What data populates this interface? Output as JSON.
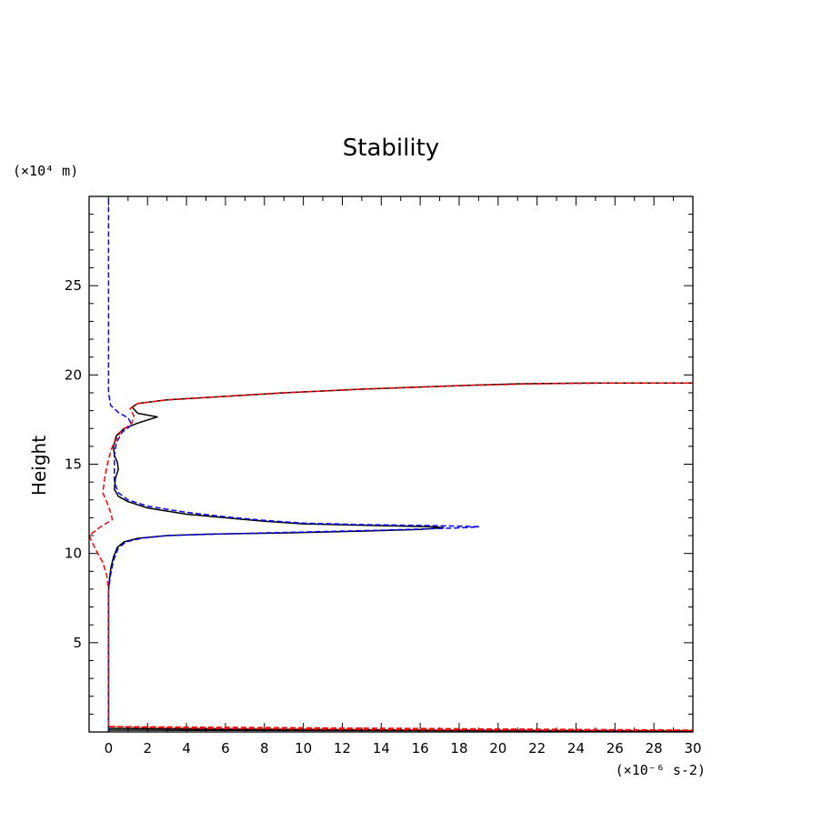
{
  "chart_data": {
    "type": "line",
    "title": "Stability",
    "xlabel": "",
    "ylabel": "Height",
    "x_unit": "(×10⁻⁶ s-2)",
    "y_unit": "(×10⁴ m)",
    "xlim": [
      -1,
      30
    ],
    "ylim": [
      0,
      30
    ],
    "x_ticks": [
      0,
      2,
      4,
      6,
      8,
      10,
      12,
      14,
      16,
      18,
      20,
      22,
      24,
      26,
      28,
      30
    ],
    "y_ticks": [
      5,
      10,
      15,
      20,
      25
    ],
    "grid": false,
    "series": [
      {
        "name": "black-solid",
        "color": "#000000",
        "style": "solid",
        "points": [
          [
            0,
            0
          ],
          [
            0,
            0.2
          ],
          [
            20,
            0.08
          ],
          [
            30,
            0.05
          ],
          [
            30,
            0.05
          ],
          [
            0,
            0.1
          ],
          [
            0,
            2
          ],
          [
            0,
            5
          ],
          [
            0,
            7
          ],
          [
            0,
            8
          ],
          [
            0.05,
            8.6
          ],
          [
            0.12,
            9.2
          ],
          [
            0.25,
            9.8
          ],
          [
            0.45,
            10.35
          ],
          [
            0.8,
            10.65
          ],
          [
            1.5,
            10.85
          ],
          [
            3,
            11
          ],
          [
            5,
            11.08
          ],
          [
            9,
            11.15
          ],
          [
            13,
            11.25
          ],
          [
            16,
            11.35
          ],
          [
            17.2,
            11.45
          ],
          [
            16.5,
            11.5
          ],
          [
            13,
            11.58
          ],
          [
            10,
            11.66
          ],
          [
            8,
            11.8
          ],
          [
            6,
            12
          ],
          [
            4,
            12.2
          ],
          [
            2,
            12.55
          ],
          [
            1,
            12.9
          ],
          [
            0.5,
            13.2
          ],
          [
            0.3,
            13.6
          ],
          [
            0.35,
            14.2
          ],
          [
            0.5,
            14.7
          ],
          [
            0.45,
            15.1
          ],
          [
            0.3,
            15.5
          ],
          [
            0.25,
            16
          ],
          [
            0.4,
            16.6
          ],
          [
            0.8,
            17
          ],
          [
            1.5,
            17.3
          ],
          [
            2.5,
            17.65
          ],
          [
            1.5,
            17.85
          ],
          [
            1.2,
            18.2
          ],
          [
            1.5,
            18.4
          ],
          [
            3,
            18.6
          ],
          [
            6,
            18.8
          ],
          [
            9,
            19
          ],
          [
            13,
            19.2
          ],
          [
            18,
            19.4
          ],
          [
            21,
            19.5
          ],
          [
            25,
            19.55
          ],
          [
            30,
            19.55
          ]
        ]
      },
      {
        "name": "blue-dashed",
        "color": "#0000ff",
        "style": "dashed",
        "points": [
          [
            0,
            0
          ],
          [
            0,
            1
          ],
          [
            0,
            3
          ],
          [
            0,
            6
          ],
          [
            0,
            8
          ],
          [
            0.1,
            8.8
          ],
          [
            0.25,
            9.6
          ],
          [
            0.5,
            10.3
          ],
          [
            0.9,
            10.65
          ],
          [
            1.7,
            10.85
          ],
          [
            3,
            11
          ],
          [
            6,
            11.1
          ],
          [
            10,
            11.2
          ],
          [
            14,
            11.3
          ],
          [
            17,
            11.4
          ],
          [
            18.5,
            11.45
          ],
          [
            19,
            11.5
          ],
          [
            17,
            11.55
          ],
          [
            13,
            11.62
          ],
          [
            10,
            11.7
          ],
          [
            8,
            11.85
          ],
          [
            6,
            12.05
          ],
          [
            4,
            12.3
          ],
          [
            2,
            12.65
          ],
          [
            1,
            13
          ],
          [
            0.5,
            13.4
          ],
          [
            0.3,
            14
          ],
          [
            0.3,
            14.8
          ],
          [
            0.3,
            15.5
          ],
          [
            0.4,
            16.2
          ],
          [
            0.7,
            16.8
          ],
          [
            1.2,
            17.2
          ],
          [
            1,
            17.6
          ],
          [
            0.5,
            17.9
          ],
          [
            0.1,
            18.3
          ],
          [
            0,
            19
          ],
          [
            0,
            22
          ],
          [
            0,
            26
          ],
          [
            0,
            30
          ]
        ]
      },
      {
        "name": "red-dashed",
        "color": "#ff0000",
        "style": "dashed",
        "points": [
          [
            0,
            0.3
          ],
          [
            5,
            0.2
          ],
          [
            15,
            0.12
          ],
          [
            30,
            0.08
          ],
          [
            30,
            0.1
          ],
          [
            0,
            0.3
          ],
          [
            0,
            8
          ],
          [
            -0.1,
            8.8
          ],
          [
            -0.3,
            9.5
          ],
          [
            -0.7,
            10.3
          ],
          [
            -1,
            11
          ],
          [
            -0.4,
            11.5
          ],
          [
            0.2,
            11.9
          ],
          [
            0.1,
            12.3
          ],
          [
            -0.1,
            12.9
          ],
          [
            -0.3,
            13.4
          ],
          [
            -0.2,
            14.2
          ],
          [
            -0.1,
            14.8
          ],
          [
            0,
            15.3
          ],
          [
            0.2,
            16
          ],
          [
            0.6,
            16.8
          ],
          [
            1.2,
            17.3
          ],
          [
            1.3,
            17.7
          ],
          [
            1.1,
            18.1
          ],
          [
            1.5,
            18.4
          ],
          [
            3,
            18.6
          ],
          [
            6,
            18.8
          ],
          [
            9,
            19
          ],
          [
            13,
            19.2
          ],
          [
            18,
            19.4
          ],
          [
            22,
            19.5
          ],
          [
            26,
            19.55
          ],
          [
            30,
            19.55
          ]
        ]
      }
    ]
  }
}
